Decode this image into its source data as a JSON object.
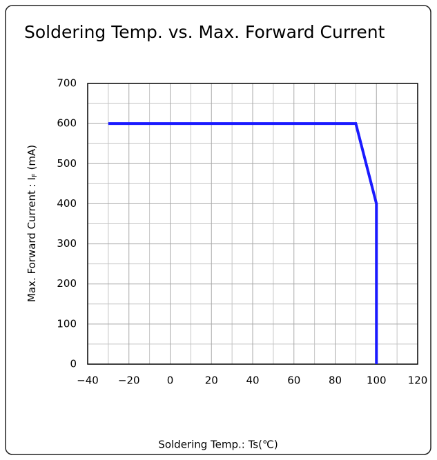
{
  "chart_data": {
    "type": "line",
    "title": "Soldering Temp. vs. Max. Forward Current",
    "xlabel": "Soldering Temp.: Ts(℃)",
    "ylabel": [
      "Max.  Forward Current : I",
      "F",
      "  (mA)"
    ],
    "x": [
      -30,
      90,
      100,
      100
    ],
    "series": [
      {
        "color": "#1a1aff",
        "values": [
          600,
          600,
          400,
          0
        ]
      }
    ],
    "xlim": [
      -40,
      120
    ],
    "xticks": [
      {
        "value": -40,
        "label": "−40"
      },
      {
        "value": -20,
        "label": "−20"
      },
      0,
      20,
      40,
      60,
      80,
      100,
      120
    ],
    "ylim": [
      0,
      700
    ],
    "yticks": [
      0,
      100,
      200,
      300,
      400,
      500,
      600,
      700
    ],
    "grid": true
  }
}
